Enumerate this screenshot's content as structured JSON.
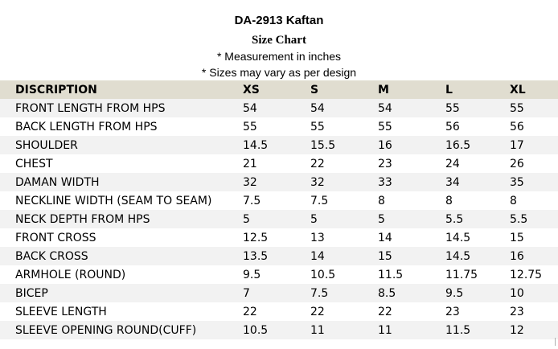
{
  "header": {
    "title": "DA-2913 Kaftan",
    "subtitle": "Size Chart",
    "note_measurement": "* Measurement in inches",
    "note_sizes": "* Sizes may vary as per design"
  },
  "table": {
    "columns": [
      "DISCRIPTION",
      "XS",
      "S",
      "M",
      "L",
      "XL"
    ],
    "rows": [
      [
        "FRONT LENGTH FROM HPS",
        "54",
        "54",
        "54",
        "55",
        "55"
      ],
      [
        "BACK LENGTH FROM HPS",
        "55",
        "55",
        "55",
        "56",
        "56"
      ],
      [
        "SHOULDER",
        "14.5",
        "15.5",
        "16",
        "16.5",
        "17"
      ],
      [
        "CHEST",
        "21",
        "22",
        "23",
        "24",
        "26"
      ],
      [
        "DAMAN WIDTH",
        "32",
        "32",
        "33",
        "34",
        "35"
      ],
      [
        "NECKLINE WIDTH (SEAM TO SEAM)",
        "7.5",
        "7.5",
        "8",
        "8",
        "8"
      ],
      [
        "NECK DEPTH FROM HPS",
        "5",
        "5",
        "5",
        "5.5",
        "5.5"
      ],
      [
        "FRONT CROSS",
        "12.5",
        "13",
        "14",
        "14.5",
        "15"
      ],
      [
        "BACK CROSS",
        "13.5",
        "14",
        "15",
        "14.5",
        "16"
      ],
      [
        "ARMHOLE (ROUND)",
        "9.5",
        "10.5",
        "11.5",
        "11.75",
        "12.75"
      ],
      [
        "BICEP",
        "7",
        "7.5",
        "8.5",
        "9.5",
        "10"
      ],
      [
        "SLEEVE LENGTH",
        "22",
        "22",
        "22",
        "23",
        "23"
      ],
      [
        "SLEEVE OPENING ROUND(CUFF)",
        "10.5",
        "11",
        "11",
        "11.5",
        "12"
      ]
    ]
  },
  "colors": {
    "header_row_bg": "#e0ddd0",
    "stripe_bg": "#f2f2f2",
    "text": "#000000"
  }
}
